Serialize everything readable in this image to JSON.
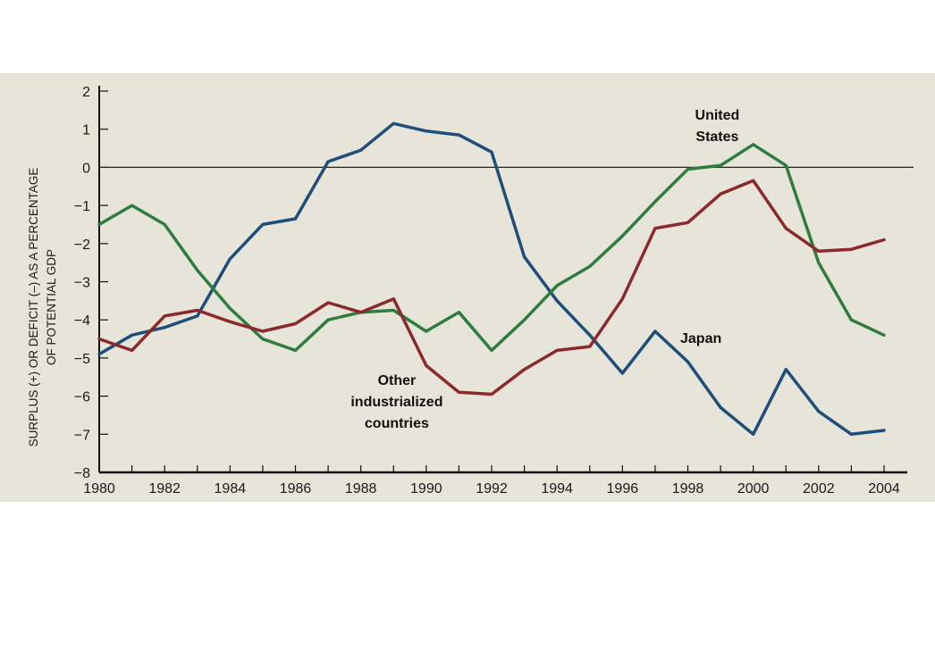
{
  "chart_data": {
    "type": "line",
    "xlabel": "",
    "ylabel": [
      "SURPLUS (+) OR DEFICIT (–) AS A PERCENTAGE",
      "OF POTENTIAL GDP"
    ],
    "xlim": [
      1980,
      2004
    ],
    "ylim": [
      -8,
      2
    ],
    "x_ticks": [
      1980,
      1982,
      1984,
      1986,
      1988,
      1990,
      1992,
      1994,
      1996,
      1998,
      2000,
      2002,
      2004
    ],
    "y_ticks": [
      2,
      1,
      0,
      -1,
      -2,
      -3,
      -4,
      -5,
      -6,
      -7,
      -8
    ],
    "y_tick_labels": [
      "2",
      "1",
      "0",
      "−1",
      "−2",
      "−3",
      "−4",
      "−5",
      "−6",
      "−7",
      "−8"
    ],
    "x": [
      1980,
      1981,
      1982,
      1983,
      1984,
      1985,
      1986,
      1987,
      1988,
      1989,
      1990,
      1991,
      1992,
      1993,
      1994,
      1995,
      1996,
      1997,
      1998,
      1999,
      2000,
      2001,
      2002,
      2003,
      2004
    ],
    "series": [
      {
        "key": "japan",
        "color": "#1f4e79",
        "values": [
          -4.9,
          -4.4,
          -4.2,
          -3.9,
          -2.4,
          -1.5,
          -1.35,
          0.15,
          0.45,
          1.15,
          0.95,
          0.85,
          0.4,
          -2.35,
          -3.5,
          -4.4,
          -5.4,
          -4.3,
          -5.1,
          -6.3,
          -7.0,
          -5.3,
          -6.4,
          -7.0,
          -6.9
        ]
      },
      {
        "key": "united-states",
        "color": "#2e7d3e",
        "values": [
          -1.5,
          -1.0,
          -1.5,
          -2.7,
          -3.7,
          -4.5,
          -4.8,
          -4.0,
          -3.8,
          -3.75,
          -4.3,
          -3.8,
          -4.8,
          -4.0,
          -3.1,
          -2.6,
          -1.8,
          -0.9,
          -0.05,
          0.05,
          0.6,
          0.05,
          -2.5,
          -4.0,
          -4.4
        ]
      },
      {
        "key": "other-industrialized",
        "color": "#8b2a2a",
        "values": [
          -4.5,
          -4.8,
          -3.9,
          -3.75,
          -4.05,
          -4.3,
          -4.1,
          -3.55,
          -3.8,
          -3.45,
          -5.2,
          -5.9,
          -5.95,
          -5.3,
          -4.8,
          -4.7,
          -3.45,
          -1.6,
          -1.45,
          -0.7,
          -0.35,
          -1.6,
          -2.2,
          -2.15,
          -1.9
        ]
      }
    ],
    "annotations": [
      {
        "key": "united-states",
        "lines": [
          "United",
          "States"
        ],
        "x": 1998.9,
        "y": 1.25
      },
      {
        "key": "japan",
        "lines": [
          "Japan"
        ],
        "x": 1998.4,
        "y": -4.6
      },
      {
        "key": "other-industrialized",
        "lines": [
          "Other",
          "industrialized",
          "countries"
        ],
        "x": 1989.1,
        "y": -5.7
      }
    ],
    "grid": false
  }
}
